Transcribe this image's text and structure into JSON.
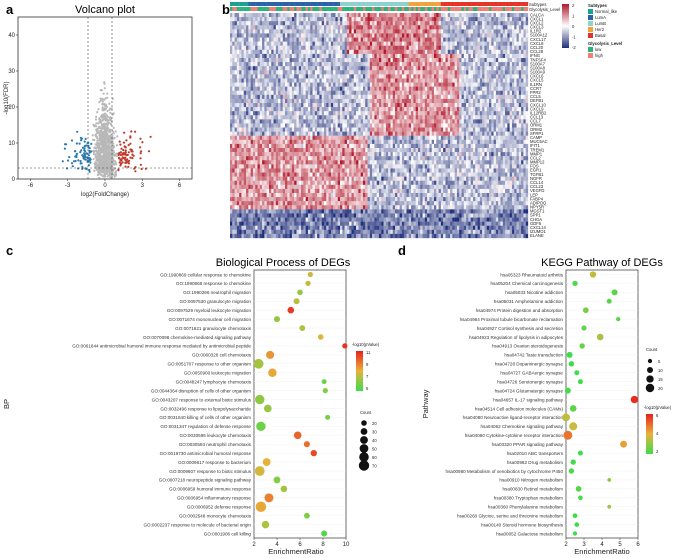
{
  "panels": {
    "a": "a",
    "b": "b",
    "c": "c",
    "d": "d"
  },
  "volcano": {
    "title": "Volcano plot",
    "xlabel": "log2(FoldChange)",
    "ylabel": "-log10(FDR)",
    "xticks": [
      "-6",
      "-3",
      "0",
      "3",
      "6"
    ],
    "yticks": [
      "0",
      "10",
      "20",
      "30",
      "40"
    ]
  },
  "heatmap": {
    "genes": [
      "CALCA",
      "CXCL1",
      "CXCL2",
      "CXCL3",
      "IL1R2",
      "S100A12",
      "CXCL17",
      "CXCL8",
      "CCL20",
      "CCL28",
      "IFNG",
      "TNFSF4",
      "S100A7",
      "S100A8",
      "S100A9",
      "CXCL6",
      "CXCL5",
      "IL1RN",
      "CCR7",
      "FPR2",
      "CCL5",
      "DEFB1",
      "CXCL10",
      "CXCL9",
      "IL12RB2",
      "CCL13",
      "CCL7",
      "ORM1",
      "ORM2",
      "SFRP1",
      "CAMP",
      "MUC5AC",
      "IFIT1",
      "TREM1",
      "MMP1",
      "CCL2",
      "MMP12",
      "FOS",
      "EGR1",
      "TGFB1",
      "NGFR",
      "CCL14",
      "CCL23",
      "VEGFD",
      "LEP",
      "FABP4",
      "ADIPOQ",
      "NPY5R",
      "MGST1",
      "SPP1",
      "CHGA",
      "GDF5",
      "CXCL14",
      "IZUMO1",
      "ELANE"
    ],
    "legend": {
      "subtypes_title": "Subtypes",
      "subtypes": [
        "Normal_like",
        "LumA",
        "LumB",
        "Her2",
        "Basal"
      ],
      "glyco_title": "Glycolysis_Level",
      "glyco": [
        "low",
        "high"
      ],
      "scale": [
        "2",
        "1",
        "0",
        "-1",
        "-2"
      ],
      "track1": "Subtypes",
      "track2": "Glycolysis_Level"
    }
  },
  "chart_data": [
    {
      "type": "scatter",
      "title": "Volcano plot",
      "xlabel": "log2(FoldChange)",
      "ylabel": "-log10(FDR)",
      "xlim": [
        -7,
        7
      ],
      "ylim": [
        0,
        45
      ],
      "thresholds": {
        "fc": [
          -1,
          1
        ],
        "fdr": 1.3
      },
      "series": [
        {
          "name": "Down",
          "color": "#2a7ab0"
        },
        {
          "name": "NS",
          "color": "#b8b8b8"
        },
        {
          "name": "Up",
          "color": "#c0392b"
        }
      ]
    },
    {
      "type": "bubble",
      "title": "Biological Process of DEGs",
      "xlabel": "EnrichmentRatio",
      "ylabel": "BP",
      "xlim": [
        2,
        10
      ],
      "xticks": [
        "2",
        "4",
        "6",
        "8",
        "10"
      ],
      "color_title": "-log10(pValue)",
      "color_ticks": [
        "11",
        "9",
        "7",
        "5"
      ],
      "size_title": "Count",
      "size_ticks": [
        "20",
        "30",
        "40",
        "50",
        "60",
        "70"
      ],
      "terms": [
        "GO:1990869 cellular response to chemokine",
        "GO:1990868 response to chemokine",
        "GO:1990266 neutrophil migration",
        "GO:0097530 granulocyte migration",
        "GO:0097529 myeloid leukocyte migration",
        "GO:0071674 mononuclear cell migration",
        "GO:0071621 granulocyte chemotaxis",
        "GO:0070098 chemokine-mediated signaling pathway",
        "GO:0061844 antimicrobial humoral immune response mediated by antimicrobial peptide",
        "GO:0060326 cell chemotaxis",
        "GO:0051707 response to other organism",
        "GO:0050900 leukocyte migration",
        "GO:0048247 lymphocyte chemotaxis",
        "GO:0044364 disruption of cells of other organism",
        "GO:0043207 response to external biotic stimulus",
        "GO:0032496 response to lipopolysaccharide",
        "GO:0031640 killing of cells of other organism",
        "GO:0031347 regulation of defense response",
        "GO:0030595 leukocyte chemotaxis",
        "GO:0030593 neutrophil chemotaxis",
        "GO:0019730 antimicrobial humoral response",
        "GO:0009617 response to bacterium",
        "GO:0009607 response to biotic stimulus",
        "GO:0007218 neuropeptide signaling pathway",
        "GO:0006959 humoral immune response",
        "GO:0006954 inflammatory response",
        "GO:0006952 defense response",
        "GO:0002548 monocyte chemotaxis",
        "GO:0002237 response to molecule of bacterial origin",
        "GO:0001906 cell killing"
      ],
      "ratio": [
        6.9,
        6.7,
        6.0,
        5.7,
        5.2,
        4.0,
        6.2,
        7.8,
        9.9,
        3.4,
        2.4,
        3.6,
        8.1,
        8.2,
        2.5,
        3.2,
        8.4,
        2.6,
        5.8,
        6.6,
        7.2,
        3.1,
        2.5,
        4.0,
        4.6,
        3.3,
        2.6,
        6.6,
        3.0,
        8.1
      ],
      "count": [
        18,
        18,
        20,
        24,
        28,
        24,
        22,
        20,
        18,
        42,
        62,
        46,
        16,
        18,
        58,
        38,
        16,
        58,
        38,
        24,
        26,
        40,
        62,
        30,
        28,
        52,
        72,
        22,
        36,
        24
      ],
      "logp": [
        7.5,
        7.4,
        6.5,
        7.2,
        10.5,
        6.5,
        7.0,
        7.8,
        10.6,
        8.6,
        6.8,
        8.2,
        5.8,
        6.2,
        6.4,
        6.6,
        6.0,
        5.8,
        9.6,
        9.4,
        10.2,
        8.0,
        7.6,
        6.2,
        6.8,
        9.0,
        8.2,
        6.2,
        7.0,
        5.4
      ]
    },
    {
      "type": "bubble",
      "title": "KEGG Pathway of DEGs",
      "xlabel": "EnrichmentRatio",
      "ylabel": "Pathway",
      "xlim": [
        2,
        6
      ],
      "xticks": [
        "2",
        "3",
        "4",
        "5",
        "6"
      ],
      "color_title": "-log10(pValue)",
      "color_ticks": [
        "6",
        "4",
        "2"
      ],
      "size_title": "Count",
      "size_ticks": [
        "5",
        "10",
        "15",
        "20"
      ],
      "terms": [
        "hsa05323 Rheumatoid arthritis",
        "hsa05204 Chemical carcinogenesis",
        "hsa05033 Nicotine addiction",
        "hsa05031 Amphetamine addiction",
        "hsa04974 Protein digestion and absorption",
        "hsa04964 Proximal tubule bicarbonate reclamation",
        "hsa04927 Cortisol synthesis and secretion",
        "hsa04923 Regulation of lipolysis in adipocytes",
        "hsa04913 Ovarian steroidogenesis",
        "hsa04742 Taste transduction",
        "hsa04728 Dopaminergic synapse",
        "hsa04727 GABAergic synapse",
        "hsa04726 Serotonergic synapse",
        "hsa04724 Glutamatergic synapse",
        "hsa04657 IL-17 signaling pathway",
        "hsa04514 Cell adhesion molecules (CAMs)",
        "hsa04080 Neuroactive ligand-receptor interaction",
        "hsa04062 Chemokine signaling pathway",
        "hsa04060 Cytokine-cytokine receptor interaction",
        "hsa03320 PPAR signaling pathway",
        "hsa02010 ABC transporters",
        "hsa00982 Drug metabolism",
        "hsa00980 Metabolism of xenobiotics by cytochrome P450",
        "hsa00910 Nitrogen metabolism",
        "hsa00830 Retinol metabolism",
        "hsa00380 Tryptophan metabolism",
        "hsa00360 Phenylalanine metabolism",
        "hsa00260 Glycine, serine and threonine metabolism",
        "hsa00140 Steroid hormone biosynthesis",
        "hsa00052 Galactose metabolism"
      ],
      "ratio": [
        3.5,
        2.5,
        4.7,
        4.4,
        3.1,
        4.9,
        3.0,
        3.9,
        2.9,
        2.2,
        2.3,
        2.6,
        2.8,
        2.1,
        5.8,
        2.4,
        2.0,
        2.4,
        2.1,
        5.2,
        2.8,
        2.4,
        2.3,
        4.4,
        2.7,
        2.8,
        4.4,
        2.5,
        2.6,
        2.5
      ],
      "count": [
        11,
        8,
        10,
        7,
        9,
        5,
        7,
        12,
        8,
        10,
        8,
        7,
        7,
        10,
        15,
        12,
        17,
        18,
        22,
        13,
        7,
        8,
        8,
        4,
        9,
        6,
        4,
        6,
        6,
        5
      ],
      "logp": [
        3.6,
        1.8,
        2.0,
        2.0,
        2.4,
        1.9,
        2.0,
        3.2,
        2.2,
        1.5,
        1.4,
        1.4,
        1.6,
        1.6,
        6.8,
        2.0,
        3.6,
        3.8,
        5.4,
        4.6,
        1.5,
        1.6,
        1.7,
        2.8,
        1.9,
        1.7,
        3.0,
        1.5,
        1.5,
        1.5
      ]
    }
  ]
}
